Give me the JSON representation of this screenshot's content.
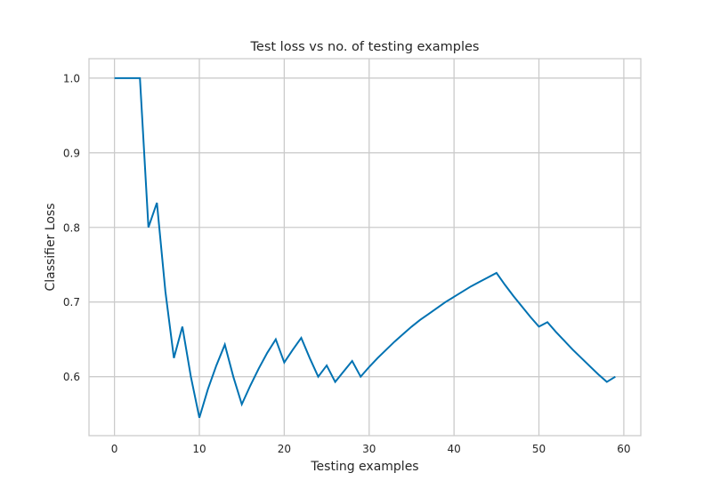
{
  "chart_data": {
    "type": "line",
    "title": "Test loss vs no. of testing examples",
    "xlabel": "Testing examples",
    "ylabel": "Classifier Loss",
    "xlim": [
      -3,
      62
    ],
    "ylim": [
      0.521,
      1.026
    ],
    "xticks": [
      0,
      10,
      20,
      30,
      40,
      50,
      60
    ],
    "yticks": [
      0.6,
      0.7,
      0.8,
      0.9,
      1.0
    ],
    "xtick_labels": [
      "0",
      "10",
      "20",
      "30",
      "40",
      "50",
      "60"
    ],
    "ytick_labels": [
      "0.6",
      "0.7",
      "0.8",
      "0.9",
      "1.0"
    ],
    "grid": true,
    "legend": "none",
    "colors": {
      "line": "#0072B2",
      "grid": "#cbcbcb",
      "frame": "#cccccc",
      "text": "#262626"
    },
    "series": [
      {
        "x": [
          0,
          1,
          2,
          3,
          4,
          5,
          6,
          7,
          8,
          9,
          10,
          11,
          12,
          13,
          14,
          15,
          16,
          17,
          18,
          19,
          20,
          21,
          22,
          23,
          24,
          25,
          26,
          27,
          28,
          29,
          30,
          31,
          32,
          33,
          34,
          35,
          36,
          37,
          38,
          39,
          40,
          41,
          42,
          43,
          44,
          45,
          46,
          47,
          48,
          49,
          50,
          51,
          52,
          53,
          54,
          55,
          56,
          57,
          58,
          59
        ],
        "values": [
          1.0,
          1.0,
          1.0,
          1.0,
          0.8,
          0.833,
          0.714,
          0.625,
          0.667,
          0.6,
          0.545,
          0.583,
          0.615,
          0.643,
          0.6,
          0.563,
          0.588,
          0.611,
          0.632,
          0.65,
          0.619,
          0.636,
          0.652,
          0.625,
          0.6,
          0.615,
          0.593,
          0.607,
          0.621,
          0.6,
          0.613,
          0.625,
          0.636,
          0.647,
          0.657,
          0.667,
          0.676,
          0.684,
          0.692,
          0.7,
          0.707,
          0.714,
          0.721,
          0.727,
          0.733,
          0.739,
          0.723,
          0.708,
          0.694,
          0.68,
          0.667,
          0.673,
          0.66,
          0.648,
          0.636,
          0.625,
          0.614,
          0.603,
          0.593,
          0.6
        ]
      }
    ]
  }
}
